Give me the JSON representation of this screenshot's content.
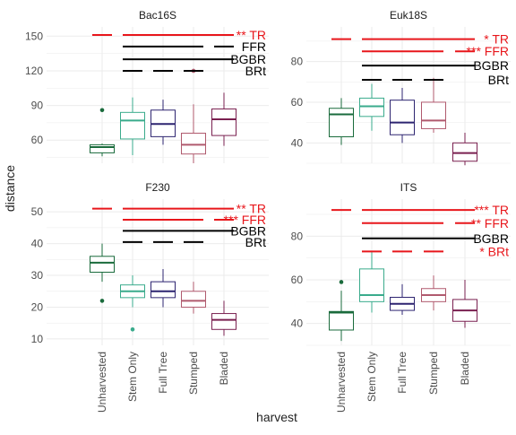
{
  "chart_data": {
    "type": "boxplot",
    "xlabel": "harvest",
    "ylabel": "distance",
    "categories": [
      "Unharvested",
      "Stem Only",
      "Full Tree",
      "Stumped",
      "Bladed"
    ],
    "category_colors": [
      "#1a6b3c",
      "#3aab8c",
      "#2d2470",
      "#b05a6e",
      "#7a2050"
    ],
    "highlight_color": "#e8161b",
    "grid": true,
    "panels": [
      {
        "title": "Bac16S",
        "ylim": [
          40,
          158
        ],
        "yticks": [
          60,
          90,
          120,
          150
        ],
        "boxes": [
          {
            "q1": 49,
            "median": 54,
            "q3": 56,
            "wlo": 46,
            "whi": 57,
            "outliers": [
              86
            ]
          },
          {
            "q1": 61,
            "median": 77,
            "q3": 84,
            "wlo": 47,
            "whi": 97,
            "outliers": []
          },
          {
            "q1": 63,
            "median": 74,
            "q3": 86,
            "wlo": 56,
            "whi": 95,
            "outliers": []
          },
          {
            "q1": 48,
            "median": 56,
            "q3": 66,
            "wlo": 40,
            "whi": 91,
            "outliers": [
              120
            ]
          },
          {
            "q1": 64,
            "median": 78,
            "q3": 87,
            "wlo": 55,
            "whi": 101,
            "outliers": []
          }
        ],
        "comparisons": [
          {
            "label": "** TR",
            "highlight": true,
            "y": 151,
            "segments": [
              [
                0,
                0
              ],
              [
                1,
                4
              ]
            ]
          },
          {
            "label": "FFR",
            "highlight": false,
            "y": 141,
            "segments": [
              [
                1,
                3
              ],
              [
                4,
                4
              ]
            ]
          },
          {
            "label": "BGBR",
            "highlight": false,
            "y": 130,
            "segments": [
              [
                1,
                4
              ]
            ]
          },
          {
            "label": "BRt",
            "highlight": false,
            "y": 120,
            "segments": [
              [
                1,
                1
              ],
              [
                2,
                2
              ],
              [
                3,
                3
              ]
            ]
          }
        ]
      },
      {
        "title": "Euk18S",
        "ylim": [
          30,
          97
        ],
        "yticks": [
          40,
          60,
          80
        ],
        "boxes": [
          {
            "q1": 43,
            "median": 54,
            "q3": 57,
            "wlo": 39,
            "whi": 62,
            "outliers": []
          },
          {
            "q1": 53,
            "median": 58,
            "q3": 62,
            "wlo": 46,
            "whi": 69,
            "outliers": []
          },
          {
            "q1": 44,
            "median": 50,
            "q3": 61,
            "wlo": 40,
            "whi": 67,
            "outliers": []
          },
          {
            "q1": 47,
            "median": 51,
            "q3": 60,
            "wlo": 45,
            "whi": 72,
            "outliers": []
          },
          {
            "q1": 31,
            "median": 35,
            "q3": 40,
            "wlo": 29,
            "whi": 45,
            "outliers": []
          }
        ],
        "comparisons": [
          {
            "label": "* TR",
            "highlight": true,
            "y": 91,
            "segments": [
              [
                0,
                0
              ],
              [
                1,
                4
              ]
            ]
          },
          {
            "label": "*** FFR",
            "highlight": true,
            "y": 85,
            "segments": [
              [
                1,
                3
              ],
              [
                4,
                4
              ]
            ]
          },
          {
            "label": "BGBR",
            "highlight": false,
            "y": 78,
            "segments": [
              [
                1,
                4
              ]
            ]
          },
          {
            "label": "BRt",
            "highlight": false,
            "y": 71,
            "segments": [
              [
                1,
                1
              ],
              [
                2,
                2
              ],
              [
                3,
                3
              ]
            ]
          }
        ]
      },
      {
        "title": "F230",
        "ylim": [
          8,
          54
        ],
        "yticks": [
          10,
          20,
          30,
          40,
          50
        ],
        "boxes": [
          {
            "q1": 31,
            "median": 34,
            "q3": 36,
            "wlo": 28,
            "whi": 40,
            "outliers": [
              22
            ]
          },
          {
            "q1": 23,
            "median": 25,
            "q3": 27,
            "wlo": 20,
            "whi": 30,
            "outliers": [
              13
            ]
          },
          {
            "q1": 23,
            "median": 25,
            "q3": 28,
            "wlo": 20,
            "whi": 32,
            "outliers": []
          },
          {
            "q1": 20,
            "median": 22,
            "q3": 25,
            "wlo": 18,
            "whi": 28,
            "outliers": []
          },
          {
            "q1": 13,
            "median": 16,
            "q3": 18,
            "wlo": 11,
            "whi": 22,
            "outliers": []
          }
        ],
        "comparisons": [
          {
            "label": "** TR",
            "highlight": true,
            "y": 51,
            "segments": [
              [
                0,
                0
              ],
              [
                1,
                4
              ]
            ]
          },
          {
            "label": "*** FFR",
            "highlight": true,
            "y": 47.5,
            "segments": [
              [
                1,
                3
              ],
              [
                4,
                4
              ]
            ]
          },
          {
            "label": "BGBR",
            "highlight": false,
            "y": 44,
            "segments": [
              [
                1,
                4
              ]
            ]
          },
          {
            "label": "BRt",
            "highlight": false,
            "y": 40.5,
            "segments": [
              [
                1,
                1
              ],
              [
                2,
                2
              ],
              [
                3,
                3
              ]
            ]
          }
        ]
      },
      {
        "title": "ITS",
        "ylim": [
          30,
          97
        ],
        "yticks": [
          40,
          60,
          80
        ],
        "boxes": [
          {
            "q1": 37,
            "median": 45,
            "q3": 45.5,
            "wlo": 32,
            "whi": 55,
            "outliers": [
              59
            ]
          },
          {
            "q1": 50,
            "median": 53,
            "q3": 65,
            "wlo": 45,
            "whi": 73,
            "outliers": []
          },
          {
            "q1": 46,
            "median": 49,
            "q3": 52,
            "wlo": 44,
            "whi": 58,
            "outliers": []
          },
          {
            "q1": 50,
            "median": 53,
            "q3": 56,
            "wlo": 46,
            "whi": 62,
            "outliers": []
          },
          {
            "q1": 41,
            "median": 46,
            "q3": 51,
            "wlo": 38,
            "whi": 60,
            "outliers": []
          }
        ],
        "comparisons": [
          {
            "label": "*** TR",
            "highlight": true,
            "y": 92,
            "segments": [
              [
                0,
                0
              ],
              [
                1,
                4
              ]
            ]
          },
          {
            "label": "** FFR",
            "highlight": true,
            "y": 86,
            "segments": [
              [
                1,
                3
              ],
              [
                4,
                4
              ]
            ]
          },
          {
            "label": "BGBR",
            "highlight": false,
            "y": 79,
            "segments": [
              [
                1,
                4
              ]
            ]
          },
          {
            "label": "* BRt",
            "highlight": true,
            "y": 73,
            "segments": [
              [
                1,
                1
              ],
              [
                2,
                2
              ],
              [
                3,
                3
              ]
            ]
          }
        ]
      }
    ]
  }
}
